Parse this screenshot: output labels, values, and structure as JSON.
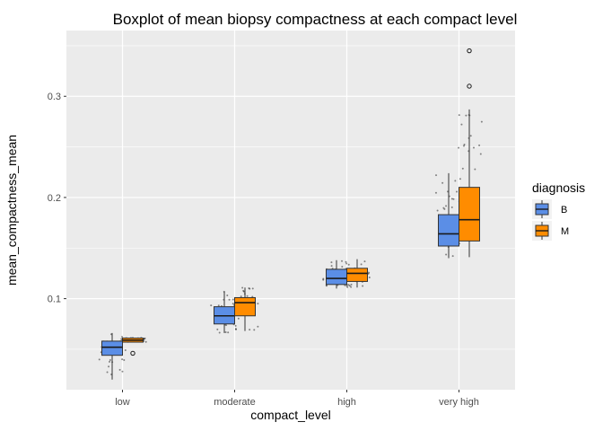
{
  "chart_data": {
    "type": "boxplot",
    "title": "Boxplot of mean biopsy compactness at each compact level",
    "xlabel": "compact_level",
    "ylabel": "mean_compactness_mean",
    "categories": [
      "low",
      "moderate",
      "high",
      "very high"
    ],
    "ylim": [
      0.01,
      0.365
    ],
    "yticks": [
      0.1,
      0.2,
      0.3
    ],
    "ytick_labels": [
      "0.1",
      "0.2",
      "0.3"
    ],
    "grid": true,
    "legend": {
      "title": "diagnosis",
      "position": "right"
    },
    "series": [
      {
        "name": "B",
        "color": "#5b8ee6",
        "boxes": [
          {
            "whisker_low": 0.02,
            "q1": 0.044,
            "median": 0.052,
            "q3": 0.058,
            "whisker_high": 0.066,
            "outliers": []
          },
          {
            "whisker_low": 0.066,
            "q1": 0.075,
            "median": 0.083,
            "q3": 0.092,
            "whisker_high": 0.107,
            "outliers": []
          },
          {
            "whisker_low": 0.11,
            "q1": 0.114,
            "median": 0.12,
            "q3": 0.129,
            "whisker_high": 0.138,
            "outliers": []
          },
          {
            "whisker_low": 0.14,
            "q1": 0.152,
            "median": 0.164,
            "q3": 0.183,
            "whisker_high": 0.224,
            "outliers": []
          }
        ]
      },
      {
        "name": "M",
        "color": "#ff8c00",
        "boxes": [
          {
            "whisker_low": 0.057,
            "q1": 0.057,
            "median": 0.059,
            "q3": 0.061,
            "whisker_high": 0.062,
            "outliers": [
              0.046
            ]
          },
          {
            "whisker_low": 0.068,
            "q1": 0.083,
            "median": 0.096,
            "q3": 0.101,
            "whisker_high": 0.111,
            "outliers": []
          },
          {
            "whisker_low": 0.111,
            "q1": 0.117,
            "median": 0.125,
            "q3": 0.13,
            "whisker_high": 0.139,
            "outliers": []
          },
          {
            "whisker_low": 0.141,
            "q1": 0.157,
            "median": 0.178,
            "q3": 0.21,
            "whisker_high": 0.287,
            "outliers": [
              0.31,
              0.345
            ]
          }
        ]
      }
    ]
  }
}
